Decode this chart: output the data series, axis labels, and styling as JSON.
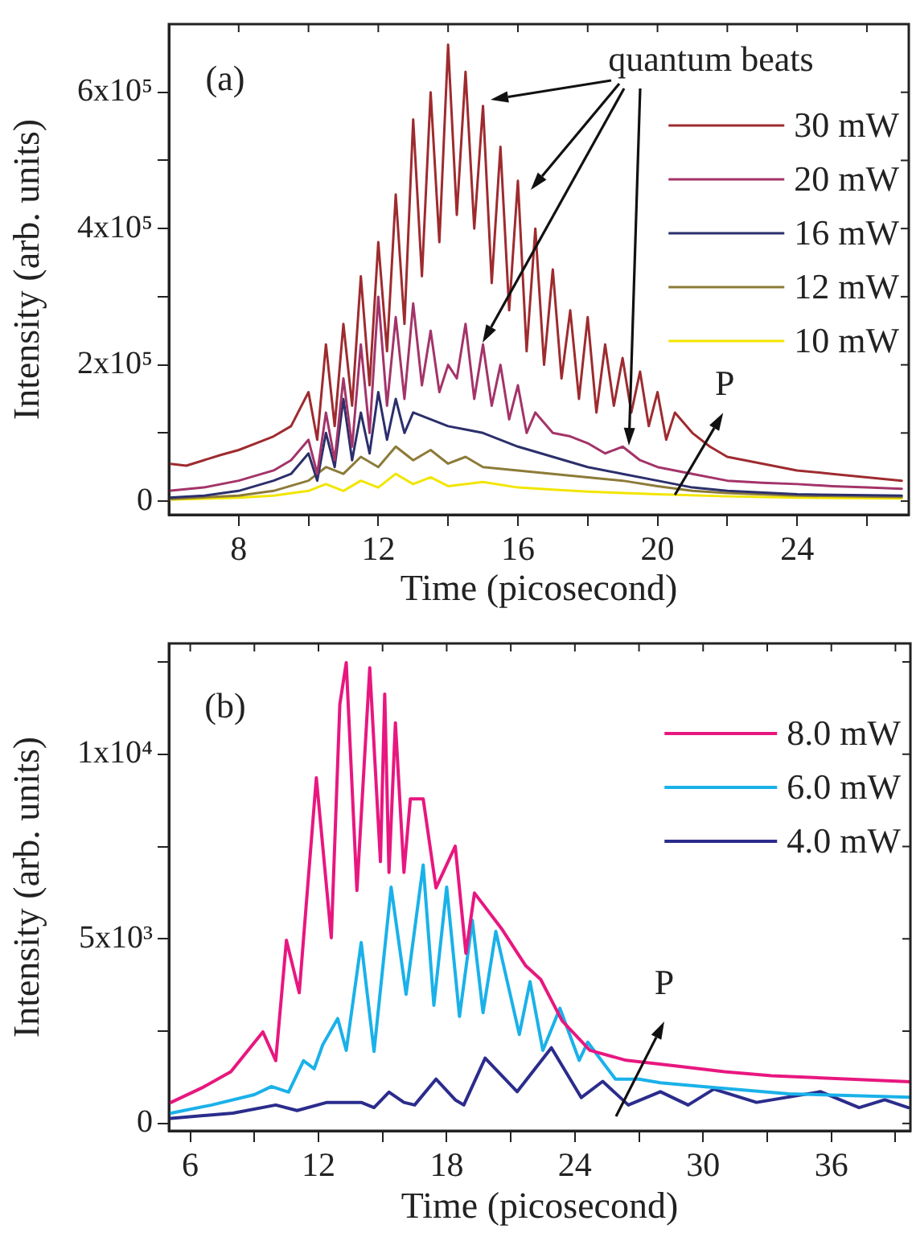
{
  "chart_data": [
    {
      "type": "line",
      "xlabel": "Time (picosecond)",
      "ylabel": "Intensity (arb. units)",
      "legend": "top right",
      "grid": false,
      "xlim": [
        6,
        27.2
      ],
      "ylim": [
        -20000,
        700000
      ],
      "xticks": [
        8,
        {
          "value": 10,
          "label": null
        },
        12,
        {
          "value": 14,
          "label": null
        },
        16,
        {
          "value": 18,
          "label": null
        },
        20,
        {
          "value": 22,
          "label": null
        },
        24,
        {
          "value": 26,
          "label": null
        }
      ],
      "yticks": [
        0,
        {
          "value": 100000,
          "label": null
        },
        {
          "value": 200000,
          "label": "2x10⁵"
        },
        {
          "value": 300000,
          "label": null
        },
        {
          "value": 400000,
          "label": "4x10⁵"
        },
        {
          "value": 500000,
          "label": null
        },
        {
          "value": 600000,
          "label": "6x10⁵"
        }
      ],
      "annotations": [
        "(a)",
        "quantum beats",
        {
          "text": "P",
          "x": 20.5,
          "y": 9250
        }
      ],
      "series": [
        {
          "name": "30 mW",
          "color": "#9e2b2f",
          "x": [
            6,
            6.5,
            7,
            7.5,
            8,
            8.5,
            9,
            9.5,
            10,
            10.25,
            10.5,
            10.75,
            11,
            11.25,
            11.5,
            11.75,
            12,
            12.25,
            12.5,
            12.75,
            13,
            13.25,
            13.5,
            13.75,
            14,
            14.25,
            14.5,
            14.75,
            15,
            15.25,
            15.5,
            15.75,
            16,
            16.25,
            16.5,
            16.75,
            17,
            17.25,
            17.5,
            17.75,
            18,
            18.25,
            18.5,
            18.75,
            19,
            19.25,
            19.5,
            19.75,
            20,
            20.25,
            20.5,
            21,
            21.5,
            22,
            22.5,
            23,
            23.5,
            24,
            25,
            26,
            27
          ],
          "values": [
            55000,
            52000,
            60000,
            68000,
            75000,
            85000,
            95000,
            110000,
            160000,
            90000,
            230000,
            110000,
            260000,
            140000,
            330000,
            170000,
            380000,
            220000,
            450000,
            260000,
            560000,
            330000,
            600000,
            380000,
            670000,
            420000,
            630000,
            400000,
            580000,
            320000,
            520000,
            280000,
            470000,
            220000,
            400000,
            200000,
            340000,
            180000,
            280000,
            150000,
            270000,
            130000,
            230000,
            140000,
            210000,
            130000,
            190000,
            110000,
            160000,
            90000,
            130000,
            100000,
            80000,
            65000,
            60000,
            55000,
            50000,
            45000,
            40000,
            35000,
            30000
          ]
        },
        {
          "name": "20 mW",
          "color": "#a33469",
          "x": [
            6,
            7,
            8,
            9,
            9.5,
            10,
            10.25,
            10.5,
            10.75,
            11,
            11.25,
            11.5,
            11.75,
            12,
            12.25,
            12.5,
            12.75,
            13,
            13.25,
            13.5,
            13.75,
            14,
            14.25,
            14.5,
            14.75,
            15,
            15.25,
            15.5,
            15.75,
            16,
            16.25,
            16.5,
            17,
            17.5,
            18,
            18.5,
            19,
            19.5,
            20,
            21,
            22,
            23,
            24,
            25,
            26,
            27
          ],
          "values": [
            15000,
            20000,
            30000,
            45000,
            60000,
            90000,
            40000,
            130000,
            60000,
            180000,
            80000,
            230000,
            100000,
            300000,
            140000,
            270000,
            150000,
            290000,
            170000,
            250000,
            160000,
            200000,
            180000,
            260000,
            150000,
            230000,
            140000,
            200000,
            120000,
            170000,
            100000,
            130000,
            100000,
            95000,
            85000,
            70000,
            80000,
            60000,
            50000,
            40000,
            30000,
            27000,
            25000,
            22000,
            20000,
            18000
          ]
        },
        {
          "name": "16 mW",
          "color": "#2b2f6b",
          "x": [
            6,
            7,
            8,
            9,
            9.5,
            10,
            10.25,
            10.5,
            10.75,
            11,
            11.25,
            11.5,
            11.75,
            12,
            12.25,
            12.5,
            12.75,
            13,
            13.5,
            14,
            14.5,
            15,
            15.5,
            16,
            17,
            18,
            19,
            20,
            21,
            22,
            24,
            27
          ],
          "values": [
            5000,
            8000,
            15000,
            30000,
            40000,
            70000,
            30000,
            100000,
            50000,
            150000,
            60000,
            130000,
            70000,
            160000,
            90000,
            150000,
            100000,
            130000,
            120000,
            110000,
            105000,
            100000,
            90000,
            80000,
            65000,
            50000,
            40000,
            30000,
            20000,
            15000,
            10000,
            8000
          ]
        },
        {
          "name": "12 mW",
          "color": "#8c7b38",
          "x": [
            6,
            8,
            9,
            10,
            10.5,
            11,
            11.5,
            12,
            12.5,
            13,
            13.5,
            14,
            14.5,
            15,
            16,
            17,
            18,
            19,
            20,
            21,
            22,
            24,
            27
          ],
          "values": [
            3000,
            8000,
            15000,
            30000,
            50000,
            40000,
            65000,
            50000,
            80000,
            60000,
            75000,
            55000,
            65000,
            50000,
            45000,
            40000,
            35000,
            30000,
            22000,
            15000,
            12000,
            8000,
            6000
          ]
        },
        {
          "name": "10 mW",
          "color": "#f2e500",
          "x": [
            6,
            8,
            9,
            10,
            10.5,
            11,
            11.5,
            12,
            12.5,
            13,
            13.5,
            14,
            15,
            16,
            17,
            18,
            20,
            22,
            24,
            27
          ],
          "values": [
            2000,
            5000,
            8000,
            15000,
            25000,
            15000,
            30000,
            20000,
            40000,
            25000,
            35000,
            22000,
            28000,
            20000,
            17000,
            14000,
            10000,
            7000,
            5000,
            4000
          ]
        }
      ]
    },
    {
      "type": "line",
      "xlabel": "Time (picosecond)",
      "ylabel": "Intensity (arb. units)",
      "legend": "top right",
      "grid": false,
      "xlim": [
        5,
        39.7
      ],
      "ylim": [
        -200,
        13000
      ],
      "xticks": [
        6,
        {
          "value": 9,
          "label": null
        },
        12,
        {
          "value": 15,
          "label": null
        },
        18,
        {
          "value": 21,
          "label": null
        },
        24,
        {
          "value": 27,
          "label": null
        },
        30,
        {
          "value": 33,
          "label": null
        },
        36,
        {
          "value": 39,
          "label": null
        }
      ],
      "yticks": [
        0,
        {
          "value": 2500,
          "label": null
        },
        {
          "value": 5000,
          "label": "5x10³"
        },
        {
          "value": 7500,
          "label": null
        },
        {
          "value": 10000,
          "label": "1x10⁴"
        },
        {
          "value": 12500,
          "label": null
        }
      ],
      "annotations": [
        "(b)",
        "P"
      ],
      "series": [
        {
          "name": "8.0 mW",
          "color": "#e8177f",
          "x": [
            5.1,
            6.6,
            7.9,
            9.4,
            10,
            10.5,
            11.1,
            11.9,
            12.6,
            13,
            13.3,
            13.8,
            14.4,
            14.9,
            15.1,
            15.3,
            15.6,
            16,
            16.3,
            16.9,
            17.5,
            18.4,
            18.9,
            19.3,
            20.6,
            21.7,
            22.4,
            23.4,
            24.7,
            26.4,
            28.7,
            31,
            33.2,
            39.7
          ],
          "values": [
            570,
            980,
            1400,
            2480,
            1700,
            4960,
            3540,
            9360,
            5030,
            11350,
            12480,
            6310,
            12340,
            7090,
            11630,
            6800,
            10850,
            6800,
            8790,
            8790,
            6380,
            7510,
            4610,
            6240,
            5250,
            4270,
            3900,
            2780,
            1980,
            1710,
            1560,
            1400,
            1290,
            1130
          ]
        },
        {
          "name": "6.0 mW",
          "color": "#1ab1e9",
          "x": [
            5.1,
            7,
            9,
            9.8,
            10.6,
            11.3,
            11.8,
            12.2,
            12.9,
            13.3,
            14,
            14.6,
            15.4,
            16.1,
            16.9,
            17.4,
            18,
            18.6,
            19.2,
            19.7,
            20.3,
            21.4,
            21.9,
            22.5,
            23.3,
            24.2,
            24.6,
            25.9,
            27,
            28,
            30,
            32,
            34,
            39.7
          ],
          "values": [
            280,
            500,
            780,
            1000,
            850,
            1700,
            1480,
            2130,
            2840,
            1980,
            4900,
            1950,
            6400,
            3500,
            7000,
            3200,
            6400,
            2900,
            5500,
            3000,
            5200,
            2410,
            3840,
            1980,
            3120,
            1710,
            2200,
            1200,
            1200,
            1100,
            1000,
            900,
            800,
            710
          ]
        },
        {
          "name": "4.0 mW",
          "color": "#2b2c8c",
          "x": [
            5.1,
            8,
            10,
            11,
            12.4,
            14,
            14.6,
            15.3,
            16,
            16.5,
            17.5,
            18.4,
            18.8,
            19.8,
            21.3,
            22.9,
            24.3,
            25.3,
            26.5,
            28,
            29.3,
            30.5,
            32.5,
            35.5,
            37.3,
            38.5,
            39.6
          ],
          "values": [
            140,
            280,
            500,
            350,
            570,
            570,
            430,
            850,
            570,
            500,
            1200,
            640,
            500,
            1770,
            860,
            2050,
            700,
            1140,
            500,
            860,
            500,
            930,
            570,
            860,
            430,
            640,
            430
          ]
        }
      ]
    }
  ]
}
